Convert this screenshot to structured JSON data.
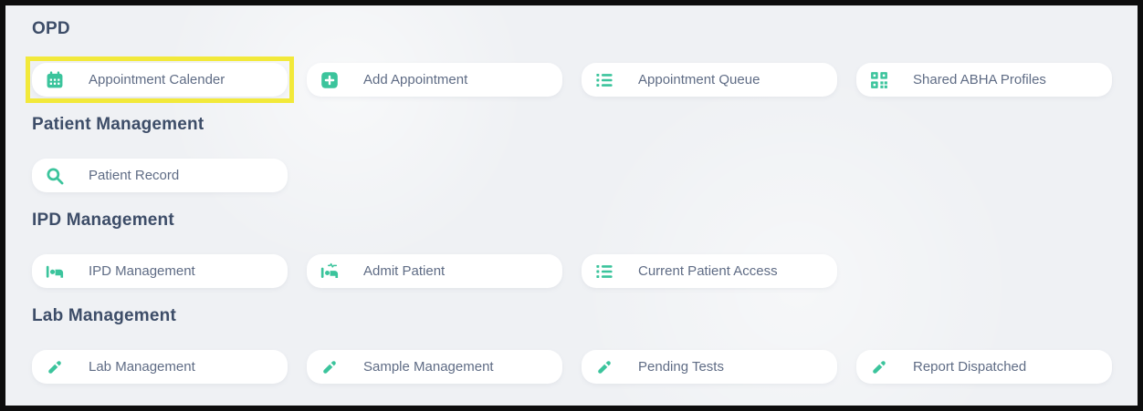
{
  "panel": {
    "background_color": "#eff1f4",
    "accent_color": "#3bc49c",
    "heading_color": "#3d4d68",
    "label_color": "#5f6c85",
    "highlight_color": "#f2e93a"
  },
  "sections": [
    {
      "title": "OPD",
      "cards": [
        {
          "label": "Appointment Calender",
          "icon": "calendar",
          "highlighted": true
        },
        {
          "label": "Add Appointment",
          "icon": "square-plus",
          "highlighted": false
        },
        {
          "label": "Appointment Queue",
          "icon": "list",
          "highlighted": false
        },
        {
          "label": "Shared ABHA Profiles",
          "icon": "qr-code",
          "highlighted": false
        }
      ]
    },
    {
      "title": "Patient Management",
      "cards": [
        {
          "label": "Patient Record",
          "icon": "search",
          "highlighted": false
        }
      ]
    },
    {
      "title": "IPD Management",
      "cards": [
        {
          "label": "IPD Management",
          "icon": "bed",
          "highlighted": false
        },
        {
          "label": "Admit Patient",
          "icon": "bed-pulse",
          "highlighted": false
        },
        {
          "label": "Current Patient Access",
          "icon": "list",
          "highlighted": false
        }
      ]
    },
    {
      "title": "Lab Management",
      "cards": [
        {
          "label": "Lab Management",
          "icon": "vial",
          "highlighted": false
        },
        {
          "label": "Sample Management",
          "icon": "vial",
          "highlighted": false
        },
        {
          "label": "Pending Tests",
          "icon": "vial",
          "highlighted": false
        },
        {
          "label": "Report Dispatched",
          "icon": "vial",
          "highlighted": false
        }
      ]
    }
  ]
}
